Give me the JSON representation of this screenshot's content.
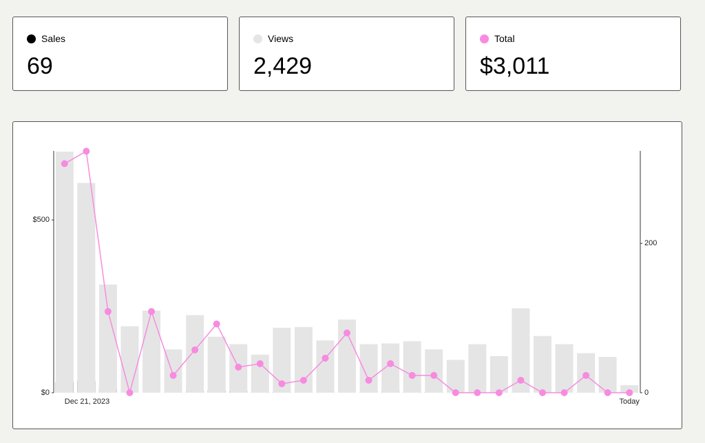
{
  "cards": [
    {
      "value": "69"
    },
    {
      "value": "2,429"
    },
    {
      "value": "$3,011"
    }
  ],
  "chart_data": {
    "type": "bar-line",
    "categories": [
      "Dec 21, 2023",
      null,
      null,
      null,
      null,
      null,
      null,
      null,
      null,
      null,
      null,
      null,
      null,
      null,
      null,
      null,
      null,
      null,
      null,
      null,
      null,
      null,
      null,
      null,
      null,
      null,
      "Today"
    ],
    "series": [
      {
        "name": "Sales",
        "type": "bar",
        "axis": "y2",
        "color": "#000000",
        "values": [
          14,
          16,
          5,
          0,
          5,
          1,
          2,
          3,
          2,
          1,
          1,
          1,
          2,
          3,
          2,
          2,
          1,
          1,
          0,
          0,
          0,
          1,
          0,
          0,
          1,
          0,
          0
        ]
      },
      {
        "name": "Views",
        "type": "bar",
        "axis": "y2",
        "color": "#e5e5e5",
        "values": [
          323,
          281,
          145,
          89,
          110,
          58,
          104,
          75,
          65,
          51,
          87,
          88,
          70,
          98,
          65,
          66,
          69,
          58,
          44,
          65,
          49,
          113,
          76,
          65,
          53,
          48,
          10
        ]
      },
      {
        "name": "Total",
        "type": "line",
        "axis": "y",
        "color": "#f78be0",
        "values": [
          663,
          699,
          235,
          0,
          235,
          50,
          124,
          199,
          74,
          84,
          26,
          36,
          100,
          173,
          36,
          84,
          50,
          50,
          0,
          0,
          0,
          36,
          0,
          0,
          50,
          0,
          0
        ]
      }
    ],
    "ylim": [
      0,
      700
    ],
    "yticks": [
      {
        "value": 0,
        "label": "$0"
      },
      {
        "value": 500,
        "label": "$500"
      }
    ],
    "y2lim": [
      0,
      324
    ],
    "y2ticks": [
      0,
      200
    ]
  }
}
